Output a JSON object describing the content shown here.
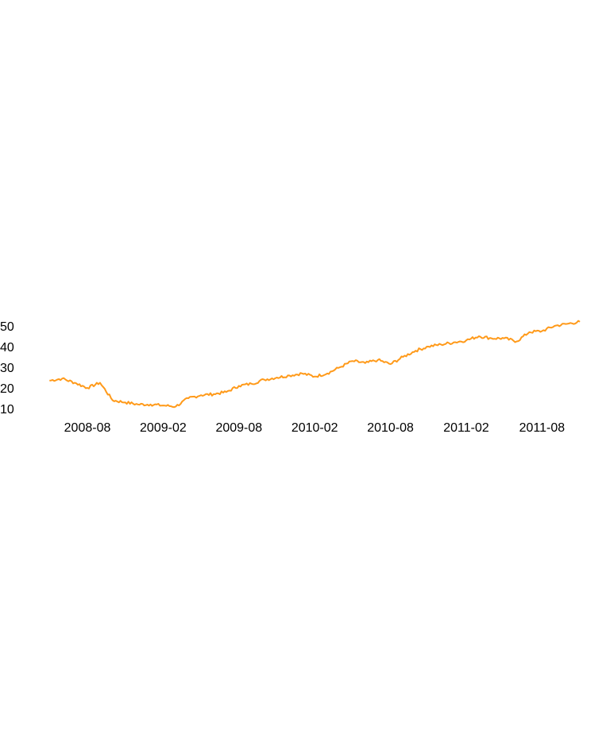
{
  "chart_data": {
    "type": "line",
    "title": "",
    "xlabel": "",
    "ylabel": "",
    "x_ticks": [
      "2008-08",
      "2009-02",
      "2009-08",
      "2010-02",
      "2010-08",
      "2011-02",
      "2011-08"
    ],
    "y_ticks": [
      10,
      20,
      30,
      40,
      50
    ],
    "xlim": [
      "2008-05",
      "2011-11"
    ],
    "ylim": [
      9,
      55
    ],
    "grid": false,
    "color": "#ff9a1a",
    "series": [
      {
        "x": [
          "2008-05",
          "2008-06",
          "2008-07",
          "2008-08",
          "2008-09",
          "2008-10",
          "2008-11",
          "2008-12",
          "2009-01",
          "2009-02",
          "2009-03",
          "2009-04",
          "2009-05",
          "2009-06",
          "2009-07",
          "2009-08",
          "2009-09",
          "2009-10",
          "2009-11",
          "2009-12",
          "2010-01",
          "2010-02",
          "2010-03",
          "2010-04",
          "2010-05",
          "2010-06",
          "2010-07",
          "2010-08",
          "2010-09",
          "2010-10",
          "2010-11",
          "2010-12",
          "2011-01",
          "2011-02",
          "2011-03",
          "2011-04",
          "2011-05",
          "2011-06",
          "2011-07",
          "2011-08",
          "2011-09",
          "2011-10",
          "2011-11"
        ],
        "y": [
          23.5,
          24.5,
          22.5,
          20,
          22.5,
          14,
          13,
          12,
          12,
          11.5,
          11,
          15,
          16.5,
          17,
          18,
          21,
          22,
          24,
          25,
          26,
          27,
          25.5,
          27,
          30,
          33,
          32,
          33.5,
          31.5,
          35,
          38,
          40,
          41,
          42,
          43,
          45,
          44,
          44,
          42.5,
          47,
          47.5,
          50,
          51,
          52
        ]
      }
    ]
  }
}
